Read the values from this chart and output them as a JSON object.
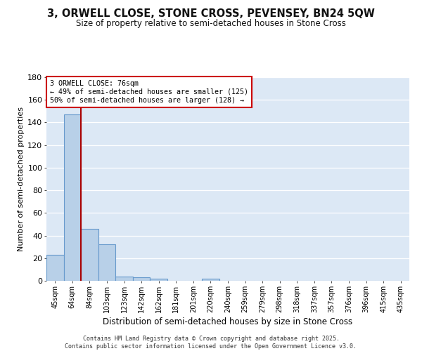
{
  "title1": "3, ORWELL CLOSE, STONE CROSS, PEVENSEY, BN24 5QW",
  "title2": "Size of property relative to semi-detached houses in Stone Cross",
  "xlabel": "Distribution of semi-detached houses by size in Stone Cross",
  "ylabel": "Number of semi-detached properties",
  "categories": [
    "45sqm",
    "64sqm",
    "84sqm",
    "103sqm",
    "123sqm",
    "142sqm",
    "162sqm",
    "181sqm",
    "201sqm",
    "220sqm",
    "240sqm",
    "259sqm",
    "279sqm",
    "298sqm",
    "318sqm",
    "337sqm",
    "357sqm",
    "376sqm",
    "396sqm",
    "415sqm",
    "435sqm"
  ],
  "values": [
    23,
    147,
    46,
    32,
    4,
    3,
    2,
    0,
    0,
    2,
    0,
    0,
    0,
    0,
    0,
    0,
    0,
    0,
    0,
    0,
    0
  ],
  "bar_color": "#b8d0e8",
  "bar_edge_color": "#6699cc",
  "bg_color": "#dce8f5",
  "grid_color": "#ffffff",
  "vline_x": 1.5,
  "vline_color": "#aa0000",
  "annotation_text": "3 ORWELL CLOSE: 76sqm\n← 49% of semi-detached houses are smaller (125)\n50% of semi-detached houses are larger (128) →",
  "annotation_box_color": "#ffffff",
  "annotation_box_edge": "#cc0000",
  "footer": "Contains HM Land Registry data © Crown copyright and database right 2025.\nContains public sector information licensed under the Open Government Licence v3.0.",
  "ylim": [
    0,
    180
  ],
  "yticks": [
    0,
    20,
    40,
    60,
    80,
    100,
    120,
    140,
    160,
    180
  ]
}
